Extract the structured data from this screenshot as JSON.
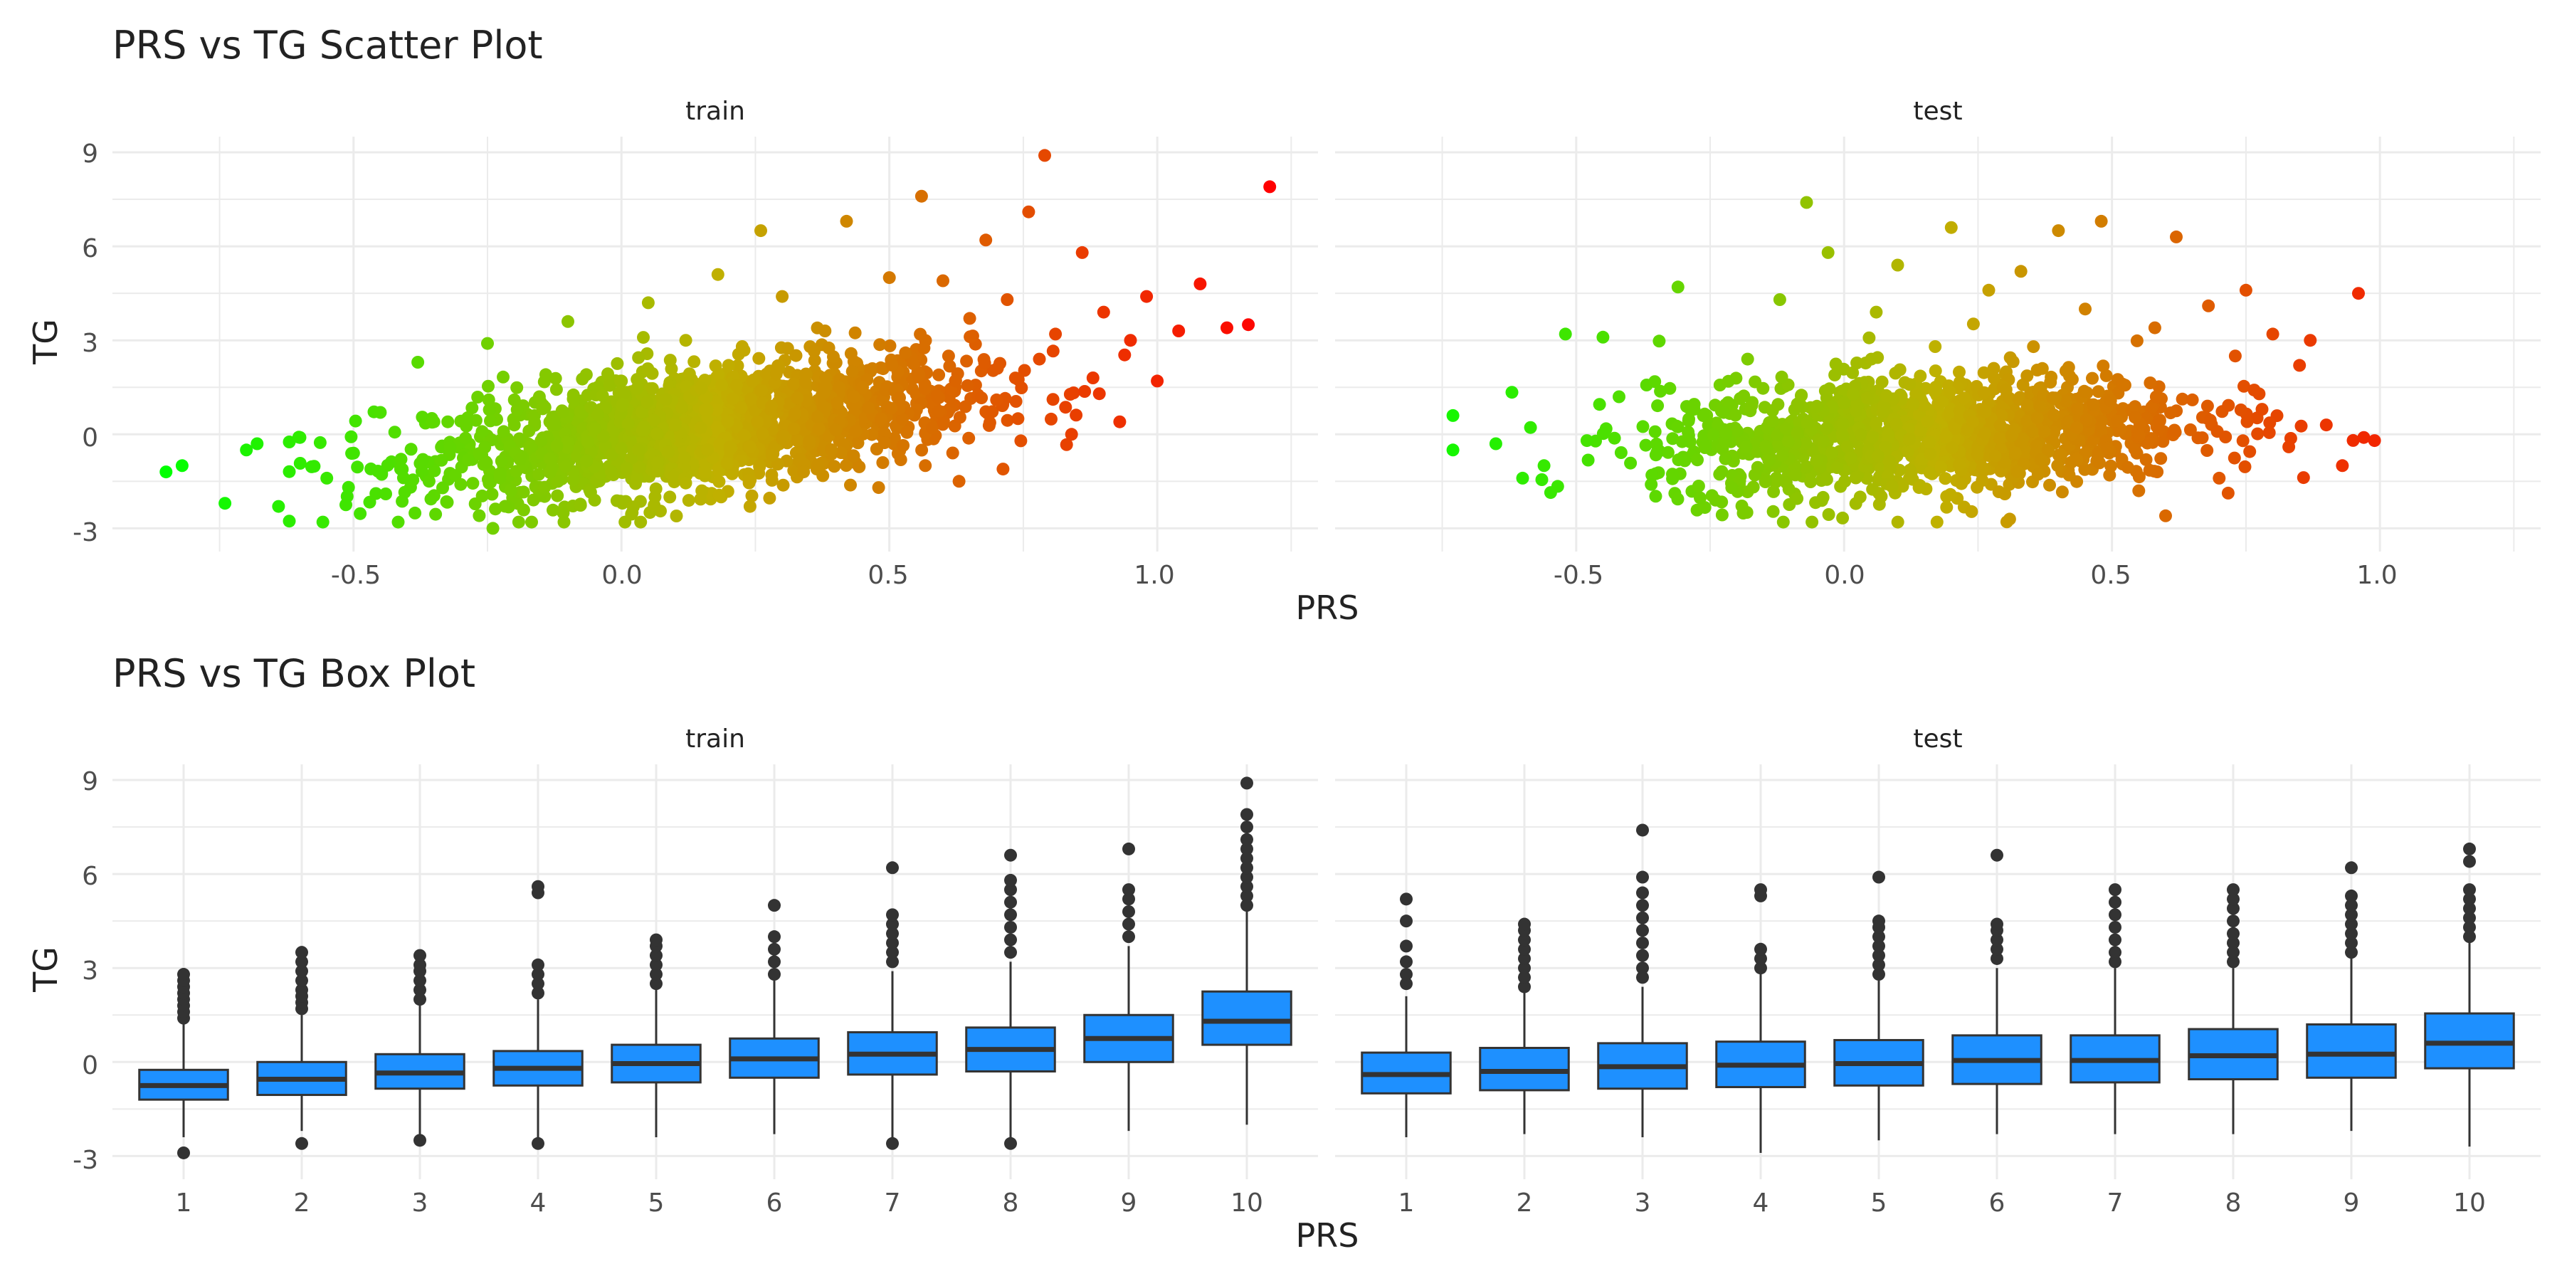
{
  "colors": {
    "gradient_low": "#00FF00",
    "gradient_mid": "#C0B000",
    "gradient_high": "#FF0000",
    "box_fill": "#1E90FF",
    "box_line": "#333333",
    "grid": "#EBEBEB",
    "text": "#222222",
    "tick_text": "#4D4D4D"
  },
  "chart_data": [
    {
      "type": "scatter",
      "title": "PRS vs TG Scatter Plot",
      "xlabel": "PRS",
      "ylabel": "TG",
      "ylim": [
        -3.4,
        9.5
      ],
      "y_ticks": [
        -3,
        0,
        3,
        6,
        9
      ],
      "y_tick_labels": [
        "-3",
        "0",
        "3",
        "6",
        "9"
      ],
      "color_encoding": "PRS (green low to red high)",
      "grid": true,
      "panels": [
        {
          "name": "train",
          "xlim": [
            -0.95,
            1.3
          ],
          "x_ticks": [
            -0.5,
            0.0,
            0.5,
            1.0
          ],
          "x_tick_labels": [
            "-0.5",
            "0.0",
            "0.5",
            "1.0"
          ],
          "points": [
            [
              -0.85,
              -1.2
            ],
            [
              -0.82,
              -1.0
            ],
            [
              -0.74,
              -2.2
            ],
            [
              -0.7,
              -0.5
            ],
            [
              -0.68,
              -0.3
            ],
            [
              -0.64,
              -2.3
            ],
            [
              -0.6,
              -0.1
            ],
            [
              -0.55,
              -1.4
            ],
            [
              -0.5,
              -0.6
            ],
            [
              -0.45,
              0.7
            ],
            [
              -0.44,
              -1.9
            ],
            [
              -0.38,
              2.3
            ],
            [
              -0.35,
              0.4
            ],
            [
              -0.3,
              -1.6
            ],
            [
              -0.25,
              2.9
            ],
            [
              -0.24,
              -3.0
            ],
            [
              -0.2,
              1.1
            ],
            [
              -0.15,
              -0.2
            ],
            [
              -0.1,
              3.6
            ],
            [
              -0.05,
              -2.1
            ],
            [
              0.0,
              1.7
            ],
            [
              0.02,
              -2.5
            ],
            [
              0.05,
              4.2
            ],
            [
              0.1,
              0.3
            ],
            [
              0.12,
              3.0
            ],
            [
              0.15,
              -1.8
            ],
            [
              0.18,
              5.1
            ],
            [
              0.2,
              2.2
            ],
            [
              0.24,
              -2.3
            ],
            [
              0.26,
              6.5
            ],
            [
              0.28,
              0.9
            ],
            [
              0.3,
              4.4
            ],
            [
              0.34,
              -1.2
            ],
            [
              0.38,
              3.3
            ],
            [
              0.42,
              6.8
            ],
            [
              0.45,
              1.5
            ],
            [
              0.48,
              -1.7
            ],
            [
              0.5,
              5.0
            ],
            [
              0.53,
              2.6
            ],
            [
              0.56,
              7.6
            ],
            [
              0.58,
              0.2
            ],
            [
              0.6,
              4.9
            ],
            [
              0.63,
              -1.5
            ],
            [
              0.65,
              3.7
            ],
            [
              0.68,
              6.2
            ],
            [
              0.7,
              1.1
            ],
            [
              0.72,
              4.3
            ],
            [
              0.74,
              0.5
            ],
            [
              0.76,
              7.1
            ],
            [
              0.78,
              2.4
            ],
            [
              0.79,
              8.9
            ],
            [
              0.81,
              3.2
            ],
            [
              0.84,
              0.0
            ],
            [
              0.86,
              5.8
            ],
            [
              0.88,
              1.8
            ],
            [
              0.9,
              3.9
            ],
            [
              0.93,
              0.4
            ],
            [
              0.95,
              3.0
            ],
            [
              0.98,
              4.4
            ],
            [
              1.0,
              1.7
            ],
            [
              1.04,
              3.3
            ],
            [
              1.08,
              4.8
            ],
            [
              1.13,
              3.4
            ],
            [
              1.17,
              3.5
            ],
            [
              1.21,
              7.9
            ]
          ]
        },
        {
          "name": "test",
          "xlim": [
            -0.95,
            1.3
          ],
          "x_ticks": [
            -0.5,
            0.0,
            0.5,
            1.0
          ],
          "x_tick_labels": [
            "-0.5",
            "0.0",
            "0.5",
            "1.0"
          ],
          "points": [
            [
              -0.73,
              0.6
            ],
            [
              -0.73,
              -0.5
            ],
            [
              -0.65,
              -0.3
            ],
            [
              -0.6,
              -1.4
            ],
            [
              -0.56,
              -1.0
            ],
            [
              -0.52,
              3.2
            ],
            [
              -0.48,
              -0.2
            ],
            [
              -0.45,
              3.1
            ],
            [
              -0.42,
              1.2
            ],
            [
              -0.36,
              -1.6
            ],
            [
              -0.31,
              4.7
            ],
            [
              -0.28,
              0.8
            ],
            [
              -0.24,
              -2.1
            ],
            [
              -0.18,
              2.4
            ],
            [
              -0.12,
              4.3
            ],
            [
              -0.07,
              7.4
            ],
            [
              -0.06,
              -2.8
            ],
            [
              -0.03,
              5.8
            ],
            [
              0.0,
              1.0
            ],
            [
              0.03,
              -2.0
            ],
            [
              0.06,
              3.9
            ],
            [
              0.1,
              5.4
            ],
            [
              0.14,
              -1.7
            ],
            [
              0.17,
              2.8
            ],
            [
              0.2,
              6.6
            ],
            [
              0.24,
              0.4
            ],
            [
              0.27,
              4.6
            ],
            [
              0.3,
              -1.9
            ],
            [
              0.33,
              5.2
            ],
            [
              0.37,
              2.1
            ],
            [
              0.4,
              6.5
            ],
            [
              0.42,
              -1.3
            ],
            [
              0.45,
              4.0
            ],
            [
              0.48,
              6.8
            ],
            [
              0.52,
              1.6
            ],
            [
              0.55,
              -1.8
            ],
            [
              0.58,
              3.4
            ],
            [
              0.6,
              -2.6
            ],
            [
              0.62,
              6.3
            ],
            [
              0.65,
              1.1
            ],
            [
              0.68,
              4.1
            ],
            [
              0.7,
              -1.4
            ],
            [
              0.73,
              2.5
            ],
            [
              0.75,
              4.6
            ],
            [
              0.78,
              0.8
            ],
            [
              0.8,
              3.2
            ],
            [
              0.83,
              -0.4
            ],
            [
              0.85,
              2.2
            ],
            [
              0.87,
              3.0
            ],
            [
              0.9,
              0.3
            ],
            [
              0.93,
              -1.0
            ],
            [
              0.96,
              4.5
            ],
            [
              0.97,
              -0.1
            ],
            [
              0.99,
              -0.2
            ]
          ]
        }
      ]
    },
    {
      "type": "box",
      "title": "PRS vs TG Box Plot",
      "xlabel": "PRS",
      "ylabel": "TG",
      "ylim": [
        -3.4,
        9.5
      ],
      "y_ticks": [
        -3,
        0,
        3,
        6,
        9
      ],
      "y_tick_labels": [
        "-3",
        "0",
        "3",
        "6",
        "9"
      ],
      "categories": [
        "1",
        "2",
        "3",
        "4",
        "5",
        "6",
        "7",
        "8",
        "9",
        "10"
      ],
      "grid": true,
      "panels": [
        {
          "name": "train",
          "boxes": [
            {
              "q1": -1.2,
              "median": -0.75,
              "q3": -0.25,
              "lower": -2.4,
              "upper": 1.2,
              "outliers": [
                -2.9,
                1.4,
                1.6,
                1.8,
                2.0,
                2.2,
                2.4,
                2.6,
                2.8
              ]
            },
            {
              "q1": -1.05,
              "median": -0.55,
              "q3": 0.0,
              "lower": -2.2,
              "upper": 1.5,
              "outliers": [
                -2.6,
                1.7,
                1.9,
                2.1,
                2.3,
                2.6,
                2.9,
                3.2,
                3.5
              ]
            },
            {
              "q1": -0.85,
              "median": -0.35,
              "q3": 0.25,
              "lower": -2.4,
              "upper": 1.8,
              "outliers": [
                -2.5,
                2.0,
                2.3,
                2.6,
                2.9,
                3.1,
                3.4
              ]
            },
            {
              "q1": -0.75,
              "median": -0.2,
              "q3": 0.35,
              "lower": -2.4,
              "upper": 2.0,
              "outliers": [
                -2.6,
                2.2,
                2.5,
                2.8,
                3.1,
                5.4,
                5.6
              ]
            },
            {
              "q1": -0.65,
              "median": -0.05,
              "q3": 0.55,
              "lower": -2.4,
              "upper": 2.3,
              "outliers": [
                2.5,
                2.8,
                3.1,
                3.4,
                3.7,
                3.9
              ]
            },
            {
              "q1": -0.5,
              "median": 0.1,
              "q3": 0.75,
              "lower": -2.3,
              "upper": 2.6,
              "outliers": [
                2.8,
                3.2,
                3.6,
                4.0,
                5.0
              ]
            },
            {
              "q1": -0.4,
              "median": 0.25,
              "q3": 0.95,
              "lower": -2.4,
              "upper": 2.9,
              "outliers": [
                -2.6,
                3.2,
                3.5,
                3.8,
                4.1,
                4.4,
                4.7,
                6.2
              ]
            },
            {
              "q1": -0.3,
              "median": 0.4,
              "q3": 1.1,
              "lower": -2.4,
              "upper": 3.2,
              "outliers": [
                -2.6,
                3.5,
                3.9,
                4.3,
                4.7,
                5.1,
                5.5,
                5.8,
                6.6
              ]
            },
            {
              "q1": 0.0,
              "median": 0.75,
              "q3": 1.5,
              "lower": -2.2,
              "upper": 3.7,
              "outliers": [
                4.0,
                4.4,
                4.8,
                5.2,
                5.5,
                6.8
              ]
            },
            {
              "q1": 0.55,
              "median": 1.3,
              "q3": 2.25,
              "lower": -2.0,
              "upper": 4.8,
              "outliers": [
                5.0,
                5.3,
                5.6,
                5.9,
                6.2,
                6.5,
                6.8,
                7.1,
                7.5,
                7.9,
                8.9
              ]
            }
          ]
        },
        {
          "name": "test",
          "boxes": [
            {
              "q1": -1.0,
              "median": -0.4,
              "q3": 0.3,
              "lower": -2.4,
              "upper": 2.1,
              "outliers": [
                2.5,
                2.8,
                3.2,
                3.7,
                4.5,
                5.2
              ]
            },
            {
              "q1": -0.9,
              "median": -0.3,
              "q3": 0.45,
              "lower": -2.3,
              "upper": 2.2,
              "outliers": [
                2.4,
                2.7,
                3.0,
                3.3,
                3.6,
                3.9,
                4.2,
                4.4
              ]
            },
            {
              "q1": -0.85,
              "median": -0.15,
              "q3": 0.6,
              "lower": -2.4,
              "upper": 2.4,
              "outliers": [
                2.7,
                3.0,
                3.4,
                3.8,
                4.2,
                4.6,
                5.0,
                5.4,
                5.9,
                7.4
              ]
            },
            {
              "q1": -0.8,
              "median": -0.1,
              "q3": 0.65,
              "lower": -2.9,
              "upper": 2.8,
              "outliers": [
                3.0,
                3.3,
                3.6,
                5.3,
                5.5
              ]
            },
            {
              "q1": -0.75,
              "median": -0.05,
              "q3": 0.7,
              "lower": -2.5,
              "upper": 2.6,
              "outliers": [
                2.8,
                3.1,
                3.4,
                3.7,
                4.0,
                4.3,
                4.5,
                5.9
              ]
            },
            {
              "q1": -0.7,
              "median": 0.05,
              "q3": 0.85,
              "lower": -2.3,
              "upper": 3.0,
              "outliers": [
                3.3,
                3.6,
                3.9,
                4.2,
                4.4,
                6.6
              ]
            },
            {
              "q1": -0.65,
              "median": 0.05,
              "q3": 0.85,
              "lower": -2.3,
              "upper": 3.0,
              "outliers": [
                3.2,
                3.5,
                3.9,
                4.3,
                4.7,
                5.1,
                5.5
              ]
            },
            {
              "q1": -0.55,
              "median": 0.2,
              "q3": 1.05,
              "lower": -2.3,
              "upper": 3.0,
              "outliers": [
                3.2,
                3.5,
                3.8,
                4.1,
                4.5,
                4.9,
                5.2,
                5.5
              ]
            },
            {
              "q1": -0.5,
              "median": 0.25,
              "q3": 1.2,
              "lower": -2.2,
              "upper": 3.3,
              "outliers": [
                3.5,
                3.8,
                4.1,
                4.4,
                4.7,
                5.0,
                5.3,
                6.2
              ]
            },
            {
              "q1": -0.2,
              "median": 0.6,
              "q3": 1.55,
              "lower": -2.7,
              "upper": 3.8,
              "outliers": [
                4.0,
                4.3,
                4.6,
                4.9,
                5.2,
                5.5,
                6.4,
                6.8
              ]
            }
          ]
        }
      ]
    }
  ]
}
